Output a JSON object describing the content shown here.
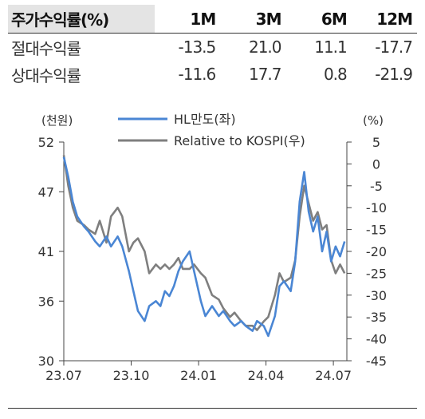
{
  "table": {
    "header": [
      "주가수익률(%)",
      "1M",
      "3M",
      "6M",
      "12M"
    ],
    "rows": [
      {
        "label": "절대수익률",
        "values": [
          "-13.5",
          "21.0",
          "11.1",
          "-17.7"
        ]
      },
      {
        "label": "상대수익률",
        "values": [
          "-11.6",
          "17.7",
          "0.8",
          "-21.9"
        ]
      }
    ]
  },
  "chart_data": {
    "type": "line",
    "left_unit": "(천원)",
    "right_unit": "(%)",
    "legend": [
      "HL만도(좌)",
      "Relative to KOSPI(우)"
    ],
    "legend_position": "top",
    "x_ticks": [
      "23.07",
      "23.10",
      "24.01",
      "24.04",
      "24.07"
    ],
    "x_range": [
      0,
      12.6
    ],
    "y_left": {
      "range": [
        30,
        52
      ],
      "ticks": [
        30,
        36,
        41,
        47,
        52
      ]
    },
    "y_right": {
      "range": [
        -45,
        5
      ],
      "ticks": [
        -45,
        -40,
        -35,
        -30,
        -25,
        -20,
        -15,
        -10,
        -5,
        0,
        5
      ]
    },
    "grid": false,
    "series": [
      {
        "name": "HL만도(좌)",
        "axis": "left",
        "color": "#4a86d4",
        "x": [
          0,
          0.2,
          0.4,
          0.6,
          0.9,
          1.1,
          1.4,
          1.6,
          1.9,
          2.1,
          2.4,
          2.6,
          2.9,
          3.1,
          3.3,
          3.6,
          3.8,
          4.1,
          4.3,
          4.5,
          4.7,
          4.9,
          5.1,
          5.3,
          5.6,
          5.8,
          6.1,
          6.3,
          6.6,
          6.9,
          7.1,
          7.4,
          7.6,
          7.9,
          8.1,
          8.4,
          8.6,
          8.9,
          9.1,
          9.4,
          9.6,
          9.8,
          10.1,
          10.3,
          10.5,
          10.7,
          10.9,
          11.1,
          11.3,
          11.5,
          11.7,
          11.9,
          12.1,
          12.3,
          12.5
        ],
        "values": [
          50.5,
          48.5,
          46,
          44.5,
          43.5,
          43,
          42,
          41.5,
          42.5,
          41.5,
          42.5,
          41.5,
          39,
          37,
          35,
          34,
          35.5,
          36,
          35.5,
          37,
          36.5,
          37.5,
          39,
          40,
          41,
          39,
          36,
          34.5,
          35.5,
          34.5,
          35,
          34,
          33.5,
          34,
          33.5,
          33,
          34,
          33.5,
          32.5,
          34.5,
          37.5,
          38,
          37,
          40,
          46,
          49,
          45,
          43,
          44.5,
          41,
          43,
          40,
          41.5,
          40.5,
          42
        ]
      },
      {
        "name": "Relative to KOSPI(우)",
        "axis": "right",
        "color": "#7f7f7f",
        "x": [
          0,
          0.2,
          0.4,
          0.6,
          0.9,
          1.1,
          1.4,
          1.6,
          1.9,
          2.1,
          2.4,
          2.6,
          2.9,
          3.1,
          3.3,
          3.6,
          3.8,
          4.1,
          4.3,
          4.5,
          4.7,
          4.9,
          5.1,
          5.3,
          5.6,
          5.8,
          6.1,
          6.3,
          6.6,
          6.9,
          7.1,
          7.4,
          7.6,
          7.9,
          8.1,
          8.4,
          8.6,
          8.9,
          9.1,
          9.4,
          9.6,
          9.8,
          10.1,
          10.3,
          10.5,
          10.7,
          10.9,
          11.1,
          11.3,
          11.5,
          11.7,
          11.9,
          12.1,
          12.3,
          12.5
        ],
        "values": [
          2,
          -5,
          -10,
          -13,
          -14,
          -15,
          -16,
          -13,
          -18,
          -12,
          -10,
          -12,
          -20,
          -18,
          -17,
          -20,
          -25,
          -23,
          -24,
          -23,
          -24,
          -23,
          -21.5,
          -24,
          -24,
          -23,
          -25,
          -26,
          -30,
          -31,
          -33,
          -35,
          -34,
          -36,
          -37,
          -37,
          -38,
          -36,
          -35,
          -30,
          -25,
          -27,
          -26,
          -22,
          -12,
          -5,
          -9,
          -13,
          -11,
          -15,
          -14,
          -22,
          -25,
          -23,
          -25
        ]
      }
    ]
  }
}
